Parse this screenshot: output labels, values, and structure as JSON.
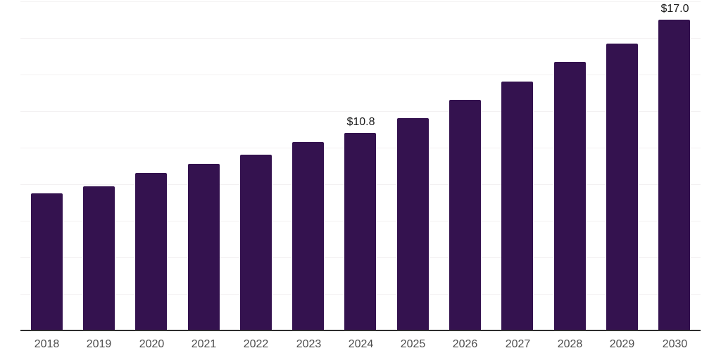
{
  "chart_data": {
    "type": "bar",
    "title": "",
    "xlabel": "",
    "ylabel": "",
    "categories": [
      "2018",
      "2019",
      "2020",
      "2021",
      "2022",
      "2023",
      "2024",
      "2025",
      "2026",
      "2027",
      "2028",
      "2029",
      "2030"
    ],
    "values": [
      7.5,
      7.9,
      8.6,
      9.1,
      9.6,
      10.3,
      10.8,
      11.6,
      12.6,
      13.6,
      14.7,
      15.7,
      17.0
    ],
    "value_prefix": "$",
    "data_labels": [
      {
        "category": "2024",
        "text": "$10.8"
      },
      {
        "category": "2030",
        "text": "$17.0"
      }
    ],
    "ylim": [
      0,
      18
    ],
    "gridline_step": 2,
    "grid": "horizontal-only",
    "legend": "none",
    "y_axis_labels_visible": false,
    "colors": {
      "bar": "#34124F",
      "gridline": "#f3f1f2",
      "axis_line": "#2e2e2e",
      "tick_label": "#4d4d4d",
      "data_label": "#1a1a1a",
      "background": "#ffffff"
    }
  }
}
